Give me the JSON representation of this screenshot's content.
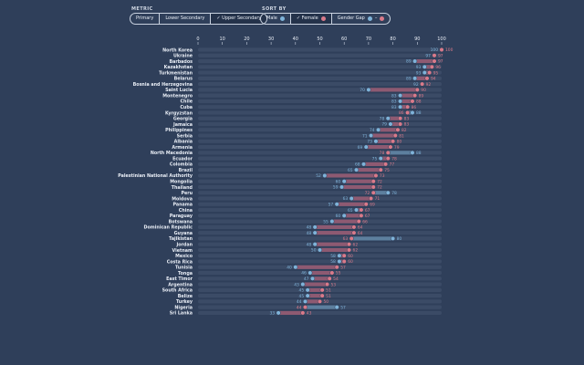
{
  "controls": {
    "metric_label": "METRIC",
    "metric_options": [
      "Primary",
      "Lower Secondary",
      "✓ Upper Secondary"
    ],
    "sort_label": "SORT BY",
    "sort_options": [
      "Male",
      "✓ Female",
      "Gender Gap"
    ]
  },
  "colors": {
    "background": "#2f3f5a",
    "track": "#3b4b66",
    "male": "#7fb3d9",
    "female": "#d97a8a",
    "gap_female": "#8e5a72",
    "gap_male": "#5d7f9e",
    "axis_text": "#e8edf5"
  },
  "chart_data": {
    "type": "dumbbell",
    "x_ticks": [
      0,
      10,
      20,
      30,
      40,
      50,
      60,
      70,
      80,
      90,
      100
    ],
    "xlim": [
      0,
      100
    ],
    "series": [
      {
        "name": "Male",
        "color": "#7fb3d9"
      },
      {
        "name": "Female",
        "color": "#d97a8a"
      }
    ],
    "rows": [
      {
        "country": "North Korea",
        "male": 100,
        "female": 100
      },
      {
        "country": "Ukraine",
        "male": 97,
        "female": 97
      },
      {
        "country": "Barbados",
        "male": 89,
        "female": 97
      },
      {
        "country": "Kazakhstan",
        "male": 93,
        "female": 96
      },
      {
        "country": "Turkmenistan",
        "male": 93,
        "female": 95
      },
      {
        "country": "Belarus",
        "male": 89,
        "female": 94
      },
      {
        "country": "Bosnia and Herzegovina",
        "male": 92,
        "female": 92
      },
      {
        "country": "Saint Lucia",
        "male": 70,
        "female": 90
      },
      {
        "country": "Montenegro",
        "male": 83,
        "female": 89
      },
      {
        "country": "Chile",
        "male": 83,
        "female": 88
      },
      {
        "country": "Cuba",
        "male": 83,
        "female": 86
      },
      {
        "country": "Kyrgyzstan",
        "male": 88,
        "female": 86
      },
      {
        "country": "Georgia",
        "male": 78,
        "female": 83
      },
      {
        "country": "Jamaica",
        "male": 79,
        "female": 83
      },
      {
        "country": "Philippines",
        "male": 74,
        "female": 82
      },
      {
        "country": "Serbia",
        "male": 71,
        "female": 81
      },
      {
        "country": "Albania",
        "male": 73,
        "female": 80
      },
      {
        "country": "Armenia",
        "male": 69,
        "female": 79
      },
      {
        "country": "North Macedonia",
        "male": 88,
        "female": 78
      },
      {
        "country": "Ecuador",
        "male": 75,
        "female": 78
      },
      {
        "country": "Colombia",
        "male": 68,
        "female": 77
      },
      {
        "country": "Brazil",
        "male": 65,
        "female": 75
      },
      {
        "country": "Palestinian National Authority",
        "male": 52,
        "female": 73
      },
      {
        "country": "Mongolia",
        "male": 60,
        "female": 72
      },
      {
        "country": "Thailand",
        "male": 59,
        "female": 72
      },
      {
        "country": "Peru",
        "male": 78,
        "female": 72
      },
      {
        "country": "Moldova",
        "male": 63,
        "female": 71
      },
      {
        "country": "Panama",
        "male": 57,
        "female": 69
      },
      {
        "country": "China",
        "male": 65,
        "female": 67
      },
      {
        "country": "Paraguay",
        "male": 60,
        "female": 67
      },
      {
        "country": "Botswana",
        "male": 55,
        "female": 66
      },
      {
        "country": "Dominican Republic",
        "male": 48,
        "female": 64
      },
      {
        "country": "Guyana",
        "male": 48,
        "female": 64
      },
      {
        "country": "Tajikistan",
        "male": 80,
        "female": 63
      },
      {
        "country": "Jordan",
        "male": 48,
        "female": 62
      },
      {
        "country": "Vietnam",
        "male": 50,
        "female": 62
      },
      {
        "country": "Mexico",
        "male": 58,
        "female": 60
      },
      {
        "country": "Costa Rica",
        "male": 58,
        "female": 60
      },
      {
        "country": "Tunisia",
        "male": 40,
        "female": 57
      },
      {
        "country": "Tonga",
        "male": 46,
        "female": 55
      },
      {
        "country": "East Timor",
        "male": 47,
        "female": 54
      },
      {
        "country": "Argentina",
        "male": 43,
        "female": 53
      },
      {
        "country": "South Africa",
        "male": 45,
        "female": 51
      },
      {
        "country": "Belize",
        "male": 45,
        "female": 51
      },
      {
        "country": "Turkey",
        "male": 44,
        "female": 50
      },
      {
        "country": "Nigeria",
        "male": 57,
        "female": 44
      },
      {
        "country": "Sri Lanka",
        "male": 33,
        "female": 43
      }
    ]
  }
}
